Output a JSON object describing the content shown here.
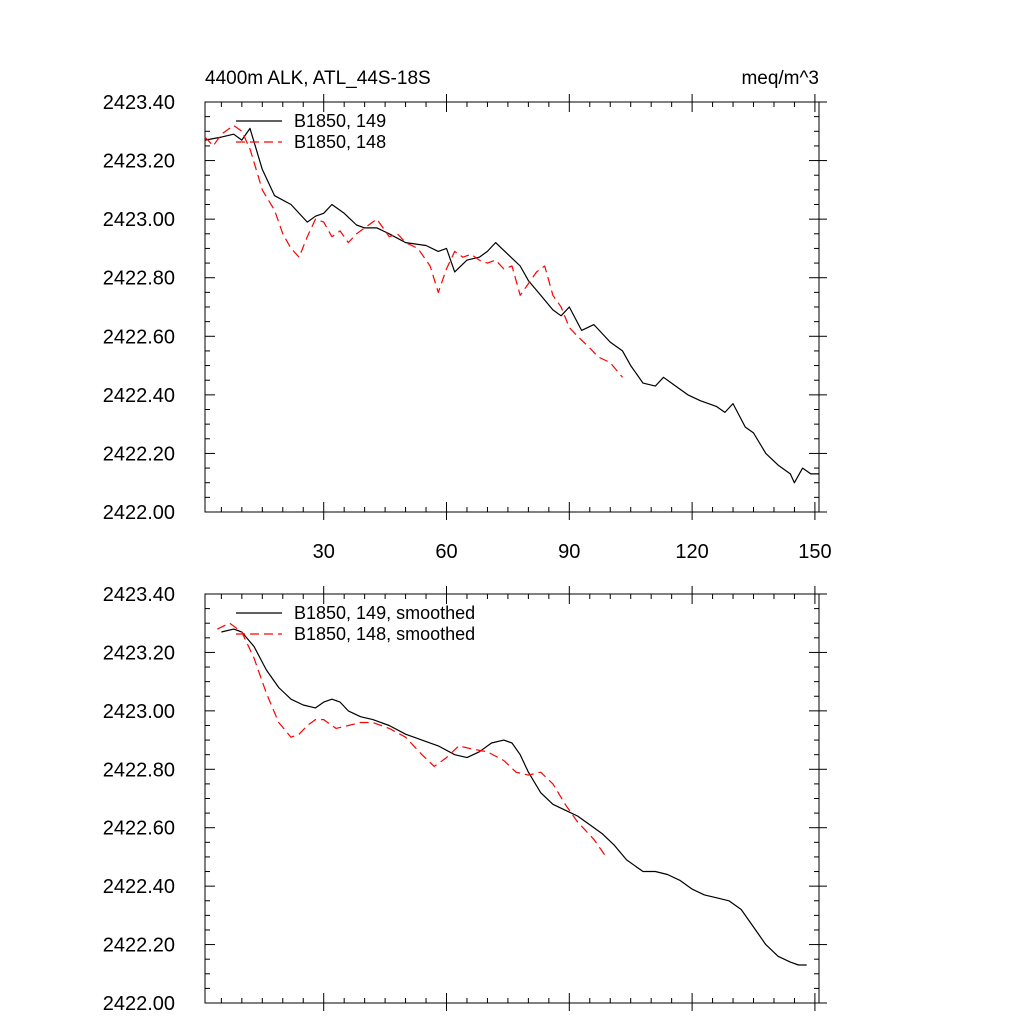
{
  "chart_data": [
    {
      "type": "line",
      "title_left": "4400m ALK, ATL_44S-18S",
      "title_right": "meq/m^3",
      "xlabel": "",
      "ylabel": "",
      "xlim": [
        1,
        151
      ],
      "ylim": [
        2422.0,
        2423.4
      ],
      "xticks": [
        30,
        60,
        90,
        120,
        150
      ],
      "xtick_labels": [
        "30",
        "60",
        "90",
        "120",
        "150"
      ],
      "yticks": [
        2422.0,
        2422.2,
        2422.4,
        2422.6,
        2422.8,
        2423.0,
        2423.2,
        2423.4
      ],
      "ytick_labels": [
        "2422.00",
        "2422.20",
        "2422.40",
        "2422.60",
        "2422.80",
        "2423.00",
        "2423.20",
        "2423.40"
      ],
      "legend_position": "top-left",
      "series": [
        {
          "name": "B1850, 149",
          "color": "#000000",
          "dash": "solid",
          "x": [
            1,
            5,
            8,
            10,
            12,
            15,
            18,
            22,
            26,
            28,
            30,
            32,
            35,
            38,
            40,
            43,
            46,
            50,
            55,
            58,
            60,
            62,
            65,
            68,
            70,
            72,
            75,
            78,
            80,
            83,
            86,
            88,
            90,
            93,
            96,
            100,
            103,
            105,
            108,
            111,
            113,
            116,
            119,
            122,
            126,
            128,
            130,
            133,
            135,
            138,
            141,
            144,
            145,
            147,
            149,
            151
          ],
          "y": [
            2423.27,
            2423.28,
            2423.29,
            2423.27,
            2423.31,
            2423.17,
            2423.08,
            2423.05,
            2422.99,
            2423.01,
            2423.02,
            2423.05,
            2423.02,
            2422.98,
            2422.97,
            2422.97,
            2422.95,
            2422.92,
            2422.91,
            2422.89,
            2422.9,
            2422.82,
            2422.86,
            2422.87,
            2422.89,
            2422.92,
            2422.88,
            2422.84,
            2422.79,
            2422.74,
            2422.69,
            2422.67,
            2422.7,
            2422.62,
            2422.64,
            2422.58,
            2422.55,
            2422.5,
            2422.44,
            2422.43,
            2422.46,
            2422.43,
            2422.4,
            2422.38,
            2422.36,
            2422.34,
            2422.37,
            2422.29,
            2422.27,
            2422.2,
            2422.16,
            2422.13,
            2422.1,
            2422.15,
            2422.13,
            2422.13
          ]
        },
        {
          "name": "B1850, 148",
          "color": "#ff0000",
          "dash": "dashed",
          "x": [
            1,
            3,
            5,
            8,
            10,
            12,
            15,
            18,
            20,
            22,
            24,
            26,
            28,
            30,
            32,
            34,
            36,
            38,
            40,
            43,
            46,
            48,
            50,
            53,
            56,
            58,
            60,
            62,
            64,
            66,
            68,
            70,
            72,
            74,
            76,
            78,
            80,
            82,
            84,
            86,
            88,
            90,
            92,
            95,
            97,
            100,
            103
          ],
          "y": [
            2423.28,
            2423.25,
            2423.29,
            2423.32,
            2423.3,
            2423.24,
            2423.1,
            2423.03,
            2422.95,
            2422.9,
            2422.87,
            2422.94,
            2423.0,
            2422.99,
            2422.94,
            2422.96,
            2422.92,
            2422.95,
            2422.97,
            2423.0,
            2422.94,
            2422.95,
            2422.92,
            2422.9,
            2422.84,
            2422.75,
            2422.83,
            2422.89,
            2422.87,
            2422.88,
            2422.86,
            2422.85,
            2422.86,
            2422.83,
            2422.84,
            2422.74,
            2422.78,
            2422.82,
            2422.84,
            2422.74,
            2422.7,
            2422.63,
            2422.6,
            2422.56,
            2422.53,
            2422.51,
            2422.46
          ]
        }
      ]
    },
    {
      "type": "line",
      "title_left": "",
      "title_right": "",
      "xlabel": "",
      "ylabel": "",
      "xlim": [
        1,
        151
      ],
      "ylim": [
        2422.0,
        2423.4
      ],
      "xticks": [
        30,
        60,
        90,
        120,
        150
      ],
      "xtick_labels": [],
      "yticks": [
        2422.0,
        2422.2,
        2422.4,
        2422.6,
        2422.8,
        2423.0,
        2423.2,
        2423.4
      ],
      "ytick_labels": [
        "2422.00",
        "2422.20",
        "2422.40",
        "2422.60",
        "2422.80",
        "2423.00",
        "2423.20",
        "2423.40"
      ],
      "legend_position": "top-left",
      "series": [
        {
          "name": "B1850, 149, smoothed",
          "color": "#000000",
          "dash": "solid",
          "x": [
            5,
            8,
            10,
            13,
            16,
            19,
            22,
            25,
            28,
            30,
            32,
            34,
            36,
            39,
            42,
            46,
            50,
            54,
            58,
            62,
            65,
            68,
            71,
            74,
            76,
            78,
            80,
            83,
            86,
            89,
            92,
            95,
            98,
            101,
            104,
            108,
            111,
            114,
            117,
            120,
            123,
            126,
            129,
            132,
            135,
            138,
            141,
            144,
            146,
            148
          ],
          "y": [
            2423.27,
            2423.28,
            2423.27,
            2423.22,
            2423.14,
            2423.08,
            2423.04,
            2423.02,
            2423.01,
            2423.03,
            2423.04,
            2423.03,
            2423.0,
            2422.98,
            2422.97,
            2422.95,
            2422.92,
            2422.9,
            2422.88,
            2422.85,
            2422.84,
            2422.86,
            2422.89,
            2422.9,
            2422.89,
            2422.85,
            2422.79,
            2422.72,
            2422.68,
            2422.66,
            2422.64,
            2422.61,
            2422.58,
            2422.54,
            2422.49,
            2422.45,
            2422.45,
            2422.44,
            2422.42,
            2422.39,
            2422.37,
            2422.36,
            2422.35,
            2422.32,
            2422.26,
            2422.2,
            2422.16,
            2422.14,
            2422.13,
            2422.13
          ]
        },
        {
          "name": "B1850, 148, smoothed",
          "color": "#ff0000",
          "dash": "dashed",
          "x": [
            4,
            7,
            10,
            13,
            16,
            19,
            22,
            24,
            26,
            28,
            30,
            33,
            36,
            39,
            42,
            46,
            50,
            54,
            57,
            60,
            63,
            66,
            70,
            74,
            77,
            80,
            83,
            86,
            89,
            92,
            96,
            99
          ],
          "y": [
            2423.28,
            2423.3,
            2423.27,
            2423.18,
            2423.06,
            2422.96,
            2422.91,
            2422.92,
            2422.95,
            2422.97,
            2422.97,
            2422.94,
            2422.95,
            2422.96,
            2422.96,
            2422.94,
            2422.91,
            2422.85,
            2422.81,
            2422.84,
            2422.88,
            2422.87,
            2422.86,
            2422.83,
            2422.79,
            2422.78,
            2422.79,
            2422.75,
            2422.68,
            2422.62,
            2422.56,
            2422.5
          ]
        }
      ]
    }
  ]
}
